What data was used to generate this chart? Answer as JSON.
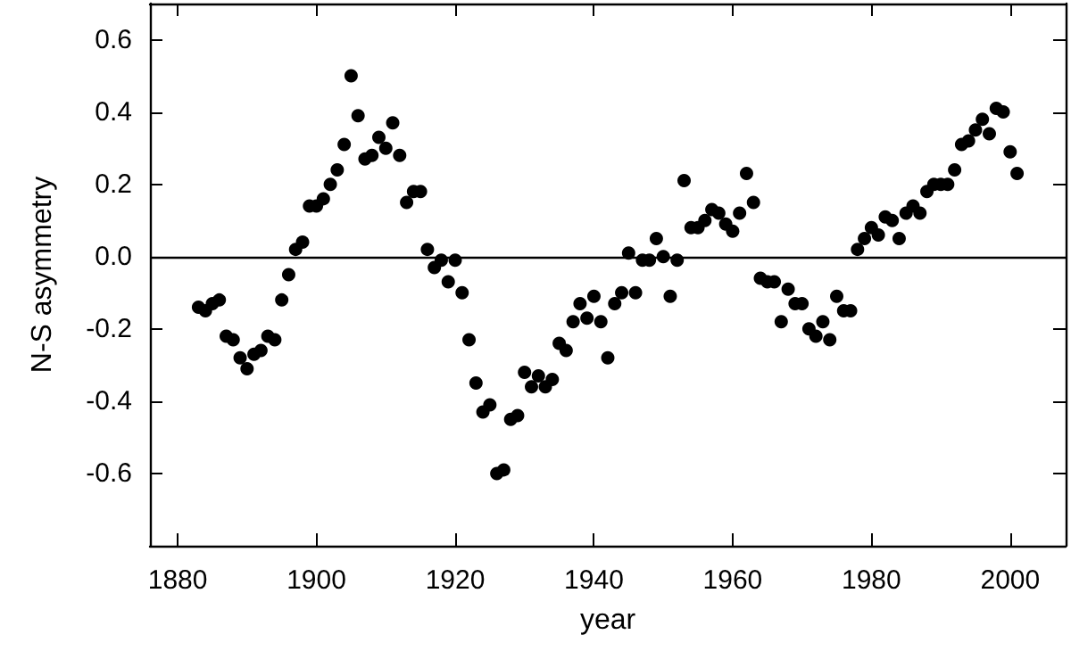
{
  "chart_data": {
    "type": "scatter",
    "xlabel": "year",
    "ylabel": "N-S asymmetry",
    "x": [
      1883,
      1884,
      1885,
      1886,
      1887,
      1888,
      1889,
      1890,
      1891,
      1892,
      1893,
      1894,
      1895,
      1896,
      1897,
      1898,
      1899,
      1900,
      1901,
      1902,
      1903,
      1904,
      1905,
      1906,
      1907,
      1908,
      1909,
      1910,
      1911,
      1912,
      1913,
      1914,
      1915,
      1916,
      1917,
      1918,
      1919,
      1920,
      1921,
      1922,
      1923,
      1924,
      1925,
      1926,
      1927,
      1928,
      1929,
      1930,
      1931,
      1932,
      1933,
      1934,
      1935,
      1936,
      1937,
      1938,
      1939,
      1940,
      1941,
      1942,
      1943,
      1944,
      1945,
      1946,
      1947,
      1948,
      1949,
      1950,
      1951,
      1952,
      1953,
      1954,
      1955,
      1956,
      1957,
      1958,
      1959,
      1960,
      1961,
      1962,
      1963,
      1964,
      1965,
      1966,
      1967,
      1968,
      1969,
      1970,
      1971,
      1972,
      1973,
      1974,
      1975,
      1976,
      1977,
      1978,
      1979,
      1980,
      1981,
      1982,
      1983,
      1984,
      1985,
      1986,
      1987,
      1988,
      1989,
      1990,
      1991,
      1992,
      1993,
      1994,
      1995,
      1996,
      1997,
      1998,
      1999,
      2000,
      2001
    ],
    "series": [
      {
        "color": "#000000",
        "values": [
          -0.14,
          -0.15,
          -0.13,
          -0.12,
          -0.22,
          -0.23,
          -0.28,
          -0.31,
          -0.27,
          -0.26,
          -0.22,
          -0.23,
          -0.12,
          -0.05,
          0.02,
          0.04,
          0.14,
          0.14,
          0.16,
          0.2,
          0.24,
          0.31,
          0.5,
          0.39,
          0.27,
          0.28,
          0.33,
          0.3,
          0.37,
          0.28,
          0.15,
          0.18,
          0.18,
          0.02,
          -0.03,
          -0.01,
          -0.07,
          -0.01,
          -0.1,
          -0.23,
          -0.35,
          -0.43,
          -0.41,
          -0.6,
          -0.59,
          -0.45,
          -0.44,
          -0.32,
          -0.36,
          -0.33,
          -0.36,
          -0.34,
          -0.24,
          -0.26,
          -0.18,
          -0.13,
          -0.17,
          -0.11,
          -0.18,
          -0.28,
          -0.13,
          -0.1,
          0.01,
          -0.1,
          -0.01,
          -0.01,
          0.05,
          0,
          -0.11,
          -0.01,
          0.21,
          0.08,
          0.08,
          0.1,
          0.13,
          0.12,
          0.09,
          0.07,
          0.12,
          0.23,
          0.15,
          -0.06,
          -0.07,
          -0.07,
          -0.18,
          -0.09,
          -0.13,
          -0.13,
          -0.2,
          -0.22,
          -0.18,
          -0.23,
          -0.11,
          -0.15,
          -0.15,
          0.02,
          0.05,
          0.08,
          0.06,
          0.11,
          0.1,
          0.05,
          0.12,
          0.14,
          0.12,
          0.18,
          0.2,
          0.2,
          0.2,
          0.24,
          0.31,
          0.32,
          0.35,
          0.38,
          0.34,
          0.41,
          0.4,
          0.29,
          0.23
        ]
      }
    ],
    "xlim": [
      1876,
      2008
    ],
    "xticks": [
      1880,
      1900,
      1920,
      1940,
      1960,
      1980,
      2000
    ],
    "ylim": [
      -0.8,
      0.7
    ],
    "yticks": [
      {
        "value": -0.6,
        "label": "-0.6"
      },
      {
        "value": -0.4,
        "label": "-0.4"
      },
      {
        "value": -0.2,
        "label": "-0.2"
      },
      {
        "value": 0,
        "label": "0.0"
      },
      {
        "value": 0.2,
        "label": "0.2"
      },
      {
        "value": 0.4,
        "label": "0.4"
      },
      {
        "value": 0.6,
        "label": "0.6"
      }
    ],
    "ref_lines": [
      {
        "axis": "y",
        "value": 0,
        "color": "#000000",
        "line_style": "solid"
      }
    ],
    "marker": "circle",
    "grid": false
  }
}
